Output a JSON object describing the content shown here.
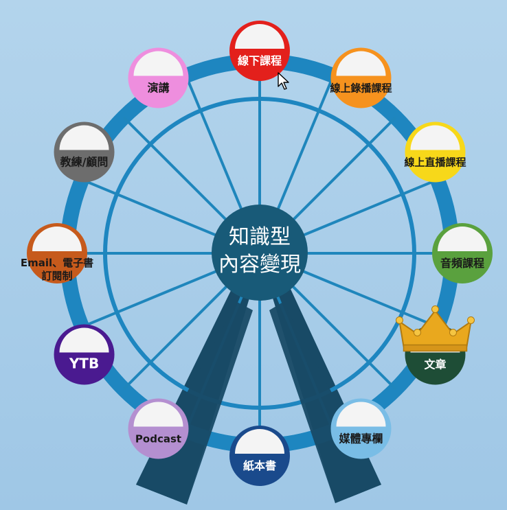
{
  "center": {
    "line1": "知識型",
    "line2": "內容變現"
  },
  "cabins": [
    {
      "id": "offline-course",
      "label": "線下課程",
      "color": "#e3201c",
      "text_color": "#ffffff"
    },
    {
      "id": "recorded-course",
      "label": "線上錄播課程",
      "color": "#f6921e",
      "text_color": "#1a1a1a"
    },
    {
      "id": "live-course",
      "label": "線上直播課程",
      "color": "#f7d81a",
      "text_color": "#1a1a1a"
    },
    {
      "id": "audio-course",
      "label": "音頻課程",
      "color": "#5aa13e",
      "text_color": "#1a1a1a"
    },
    {
      "id": "article",
      "label": "文章",
      "color": "#1e4d36",
      "text_color": "#ffffff",
      "crown": true
    },
    {
      "id": "media-column",
      "label": "媒體專欄",
      "color": "#79bde6",
      "text_color": "#1a1a1a"
    },
    {
      "id": "paper-book",
      "label": "紙本書",
      "color": "#1a4a8c",
      "text_color": "#ffffff"
    },
    {
      "id": "podcast",
      "label": "Podcast",
      "color": "#b48fd0",
      "text_color": "#1a1a1a"
    },
    {
      "id": "youtube",
      "label": "YTB",
      "color": "#4a1a90",
      "text_color": "#ffffff"
    },
    {
      "id": "email-ebook",
      "label": "Email、電子書",
      "label2": "訂閱制",
      "color": "#c65a1c",
      "text_color": "#1a1a1a"
    },
    {
      "id": "coach",
      "label": "教練/顧問",
      "color": "#6d6d6d",
      "text_color": "#1a1a1a"
    },
    {
      "id": "speech",
      "label": "演講",
      "color": "#ee8ede",
      "text_color": "#1a1a1a"
    }
  ],
  "colors": {
    "ring": "#1e86c0",
    "spoke": "#1f86bc",
    "hub": "#185a78",
    "legs": "#184a66",
    "cabin_window": "#f4f4f4"
  }
}
